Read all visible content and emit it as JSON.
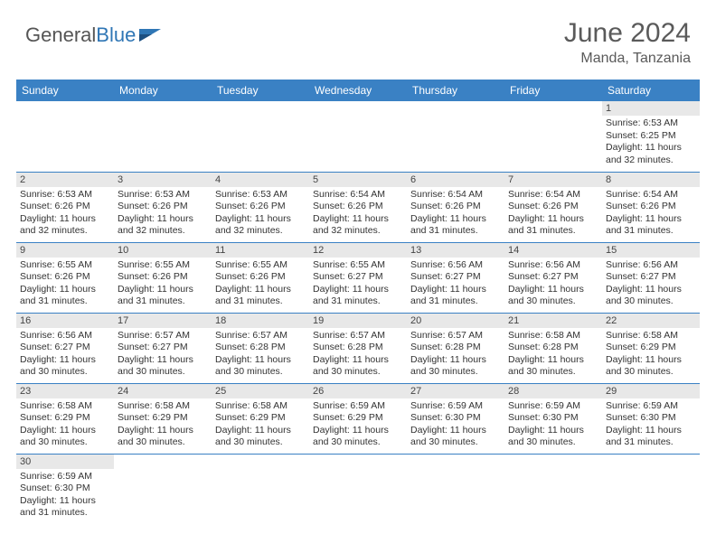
{
  "brand": {
    "part1": "General",
    "part2": "Blue"
  },
  "title": "June 2024",
  "location": "Manda, Tanzania",
  "colors": {
    "header_bg": "#3a81c4",
    "header_text": "#ffffff",
    "daynum_bg": "#e8e8e8",
    "text": "#333333",
    "rule": "#3a81c4",
    "title_color": "#5a5a5a"
  },
  "weekdays": [
    "Sunday",
    "Monday",
    "Tuesday",
    "Wednesday",
    "Thursday",
    "Friday",
    "Saturday"
  ],
  "weeks": [
    [
      null,
      null,
      null,
      null,
      null,
      null,
      {
        "n": "1",
        "sr": "Sunrise: 6:53 AM",
        "ss": "Sunset: 6:25 PM",
        "dl": "Daylight: 11 hours and 32 minutes."
      }
    ],
    [
      {
        "n": "2",
        "sr": "Sunrise: 6:53 AM",
        "ss": "Sunset: 6:26 PM",
        "dl": "Daylight: 11 hours and 32 minutes."
      },
      {
        "n": "3",
        "sr": "Sunrise: 6:53 AM",
        "ss": "Sunset: 6:26 PM",
        "dl": "Daylight: 11 hours and 32 minutes."
      },
      {
        "n": "4",
        "sr": "Sunrise: 6:53 AM",
        "ss": "Sunset: 6:26 PM",
        "dl": "Daylight: 11 hours and 32 minutes."
      },
      {
        "n": "5",
        "sr": "Sunrise: 6:54 AM",
        "ss": "Sunset: 6:26 PM",
        "dl": "Daylight: 11 hours and 32 minutes."
      },
      {
        "n": "6",
        "sr": "Sunrise: 6:54 AM",
        "ss": "Sunset: 6:26 PM",
        "dl": "Daylight: 11 hours and 31 minutes."
      },
      {
        "n": "7",
        "sr": "Sunrise: 6:54 AM",
        "ss": "Sunset: 6:26 PM",
        "dl": "Daylight: 11 hours and 31 minutes."
      },
      {
        "n": "8",
        "sr": "Sunrise: 6:54 AM",
        "ss": "Sunset: 6:26 PM",
        "dl": "Daylight: 11 hours and 31 minutes."
      }
    ],
    [
      {
        "n": "9",
        "sr": "Sunrise: 6:55 AM",
        "ss": "Sunset: 6:26 PM",
        "dl": "Daylight: 11 hours and 31 minutes."
      },
      {
        "n": "10",
        "sr": "Sunrise: 6:55 AM",
        "ss": "Sunset: 6:26 PM",
        "dl": "Daylight: 11 hours and 31 minutes."
      },
      {
        "n": "11",
        "sr": "Sunrise: 6:55 AM",
        "ss": "Sunset: 6:26 PM",
        "dl": "Daylight: 11 hours and 31 minutes."
      },
      {
        "n": "12",
        "sr": "Sunrise: 6:55 AM",
        "ss": "Sunset: 6:27 PM",
        "dl": "Daylight: 11 hours and 31 minutes."
      },
      {
        "n": "13",
        "sr": "Sunrise: 6:56 AM",
        "ss": "Sunset: 6:27 PM",
        "dl": "Daylight: 11 hours and 31 minutes."
      },
      {
        "n": "14",
        "sr": "Sunrise: 6:56 AM",
        "ss": "Sunset: 6:27 PM",
        "dl": "Daylight: 11 hours and 30 minutes."
      },
      {
        "n": "15",
        "sr": "Sunrise: 6:56 AM",
        "ss": "Sunset: 6:27 PM",
        "dl": "Daylight: 11 hours and 30 minutes."
      }
    ],
    [
      {
        "n": "16",
        "sr": "Sunrise: 6:56 AM",
        "ss": "Sunset: 6:27 PM",
        "dl": "Daylight: 11 hours and 30 minutes."
      },
      {
        "n": "17",
        "sr": "Sunrise: 6:57 AM",
        "ss": "Sunset: 6:27 PM",
        "dl": "Daylight: 11 hours and 30 minutes."
      },
      {
        "n": "18",
        "sr": "Sunrise: 6:57 AM",
        "ss": "Sunset: 6:28 PM",
        "dl": "Daylight: 11 hours and 30 minutes."
      },
      {
        "n": "19",
        "sr": "Sunrise: 6:57 AM",
        "ss": "Sunset: 6:28 PM",
        "dl": "Daylight: 11 hours and 30 minutes."
      },
      {
        "n": "20",
        "sr": "Sunrise: 6:57 AM",
        "ss": "Sunset: 6:28 PM",
        "dl": "Daylight: 11 hours and 30 minutes."
      },
      {
        "n": "21",
        "sr": "Sunrise: 6:58 AM",
        "ss": "Sunset: 6:28 PM",
        "dl": "Daylight: 11 hours and 30 minutes."
      },
      {
        "n": "22",
        "sr": "Sunrise: 6:58 AM",
        "ss": "Sunset: 6:29 PM",
        "dl": "Daylight: 11 hours and 30 minutes."
      }
    ],
    [
      {
        "n": "23",
        "sr": "Sunrise: 6:58 AM",
        "ss": "Sunset: 6:29 PM",
        "dl": "Daylight: 11 hours and 30 minutes."
      },
      {
        "n": "24",
        "sr": "Sunrise: 6:58 AM",
        "ss": "Sunset: 6:29 PM",
        "dl": "Daylight: 11 hours and 30 minutes."
      },
      {
        "n": "25",
        "sr": "Sunrise: 6:58 AM",
        "ss": "Sunset: 6:29 PM",
        "dl": "Daylight: 11 hours and 30 minutes."
      },
      {
        "n": "26",
        "sr": "Sunrise: 6:59 AM",
        "ss": "Sunset: 6:29 PM",
        "dl": "Daylight: 11 hours and 30 minutes."
      },
      {
        "n": "27",
        "sr": "Sunrise: 6:59 AM",
        "ss": "Sunset: 6:30 PM",
        "dl": "Daylight: 11 hours and 30 minutes."
      },
      {
        "n": "28",
        "sr": "Sunrise: 6:59 AM",
        "ss": "Sunset: 6:30 PM",
        "dl": "Daylight: 11 hours and 30 minutes."
      },
      {
        "n": "29",
        "sr": "Sunrise: 6:59 AM",
        "ss": "Sunset: 6:30 PM",
        "dl": "Daylight: 11 hours and 31 minutes."
      }
    ],
    [
      {
        "n": "30",
        "sr": "Sunrise: 6:59 AM",
        "ss": "Sunset: 6:30 PM",
        "dl": "Daylight: 11 hours and 31 minutes."
      },
      null,
      null,
      null,
      null,
      null,
      null
    ]
  ]
}
